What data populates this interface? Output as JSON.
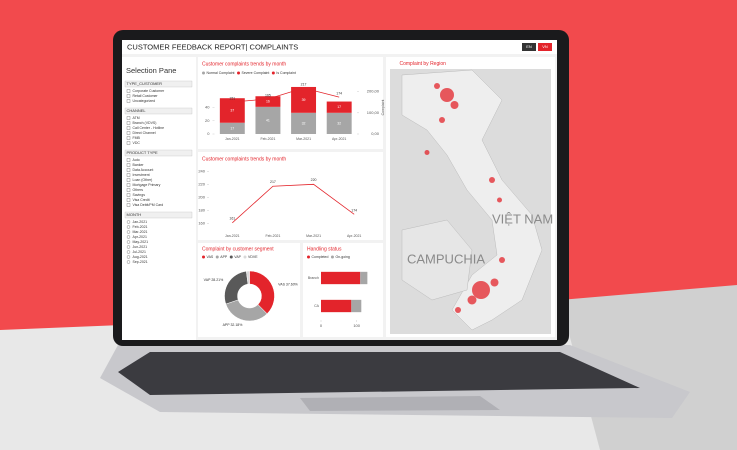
{
  "header": {
    "title": "CUSTOMER FEEDBACK REPORT| COMPLAINTS",
    "languages": [
      "EN",
      "VN"
    ]
  },
  "selection_pane": {
    "title": "Selection Pane",
    "filters": [
      {
        "name": "TYPE_CUSTOMER",
        "options": [
          "Corporate Customer",
          "Retail Customer",
          "Uncategorized"
        ]
      },
      {
        "name": "CHANNEL",
        "options": [
          "ATM",
          "Branch (VDVS)",
          "Call Center - Hotline",
          "Direct Channel",
          "FMB",
          "VDC"
        ]
      },
      {
        "name": "PRODUCT TYPE",
        "options": [
          "Auto",
          "Banker",
          "Data Account",
          "Investment",
          "Loan (Other)",
          "Mortgage Primary",
          "Others",
          "Savings",
          "Visa Credit",
          "Visa Debit/PM Card"
        ]
      },
      {
        "name": "MONTH",
        "options": [
          "Jan-2021",
          "Feb-2021",
          "Mar-2021",
          "Apr-2021",
          "May-2021",
          "Jun-2021",
          "Jul-2021",
          "Aug-2021",
          "Sep-2021"
        ]
      }
    ]
  },
  "map": {
    "title": "Complaint by Region",
    "labels": [
      "CAMPUCHIA",
      "VIỆT NAM"
    ]
  },
  "chart_data": [
    {
      "type": "combo",
      "title": "Customer complaints trends by month",
      "categories": [
        "Jan-2021",
        "Feb-2021",
        "Mar-2021",
        "Apr-2021"
      ],
      "series": [
        {
          "name": "Normal Complaint",
          "color": "#a6a6a6",
          "values": [
            17,
            41,
            32,
            32
          ]
        },
        {
          "name": "Severe Complaint",
          "color": "#e3242b",
          "values": [
            37,
            16,
            39,
            17
          ]
        },
        {
          "name": "Is Complaint",
          "color": "#e3242b",
          "axis": "y2",
          "values": [
            151,
            165,
            217,
            174
          ]
        }
      ],
      "ylim": [
        0,
        80
      ],
      "yticks": [
        0,
        20,
        40
      ],
      "y2lim": [
        0,
        250
      ],
      "y2label": "Complaint",
      "y2ticks": [
        {
          "value": 0,
          "label": "0,00"
        },
        {
          "value": 100,
          "label": "100,00"
        },
        {
          "value": 200,
          "label": "200,00"
        }
      ]
    },
    {
      "type": "line",
      "title": "Customer complaints trends by month",
      "categories": [
        "Jan-2021",
        "Feb-2021",
        "Mar-2021",
        "Apr-2021"
      ],
      "values": [
        161,
        217,
        220,
        174
      ],
      "color": "#e3242b",
      "ylim": [
        150,
        245
      ],
      "yticks": [
        160,
        180,
        200,
        220,
        240
      ]
    },
    {
      "type": "donut",
      "title": "Complaint by customer segment",
      "categories": [
        "VAS",
        "APP",
        "VAP",
        "VDVE"
      ],
      "values": [
        37.6,
        32.18,
        28.21,
        2.01
      ],
      "value_labels": [
        "VAS 37.60%",
        "APP 32.18%",
        "VAP 28.21%",
        null
      ],
      "colors": [
        "#e3242b",
        "#a6a6a6",
        "#595959",
        "#d9d9d9"
      ]
    },
    {
      "type": "hbar",
      "title": "Handling status",
      "categories": [
        "Branch",
        "CA"
      ],
      "series": [
        {
          "name": "Completed",
          "color": "#e3242b",
          "values": [
            110,
            85
          ]
        },
        {
          "name": "On-going",
          "color": "#a6a6a6",
          "values": [
            20,
            28
          ]
        }
      ],
      "xlim": [
        0,
        150
      ],
      "xticks": [
        0,
        100
      ]
    }
  ]
}
